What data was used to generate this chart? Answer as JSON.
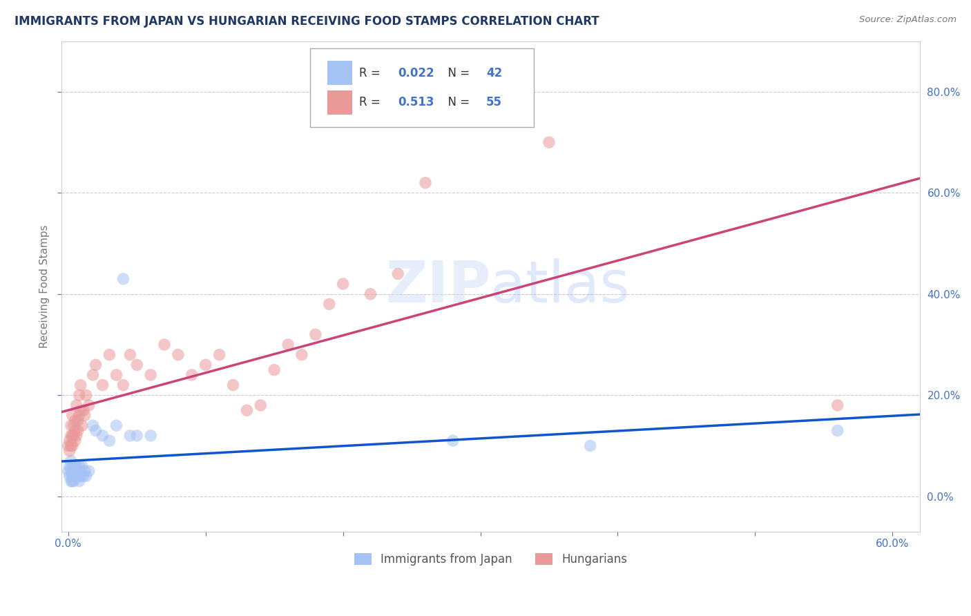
{
  "title": "IMMIGRANTS FROM JAPAN VS HUNGARIAN RECEIVING FOOD STAMPS CORRELATION CHART",
  "source": "Source: ZipAtlas.com",
  "ylabel": "Receiving Food Stamps",
  "japan_color": "#a4c2f4",
  "hungarian_color": "#ea9999",
  "japan_line_color": "#1155cc",
  "hungarian_line_color": "#cc4477",
  "title_color": "#1f3864",
  "axis_tick_color": "#4472c4",
  "watermark": "ZIPatlas",
  "xlim": [
    -0.005,
    0.62
  ],
  "ylim": [
    -0.07,
    0.9
  ],
  "ytick_positions": [
    0.0,
    0.2,
    0.4,
    0.6,
    0.8
  ],
  "xtick_positions": [
    0.0,
    0.1,
    0.2,
    0.3,
    0.4,
    0.5,
    0.6
  ],
  "xtick_labels_show": [
    "0.0%",
    "",
    "",
    "",
    "",
    "",
    "60.0%"
  ],
  "japan_x": [
    0.0,
    0.001,
    0.001,
    0.002,
    0.002,
    0.002,
    0.003,
    0.003,
    0.003,
    0.003,
    0.004,
    0.004,
    0.004,
    0.005,
    0.005,
    0.005,
    0.006,
    0.006,
    0.006,
    0.007,
    0.007,
    0.008,
    0.008,
    0.009,
    0.009,
    0.01,
    0.011,
    0.012,
    0.013,
    0.015,
    0.018,
    0.02,
    0.025,
    0.03,
    0.035,
    0.04,
    0.045,
    0.05,
    0.06,
    0.28,
    0.38,
    0.56
  ],
  "japan_y": [
    0.05,
    0.04,
    0.06,
    0.05,
    0.03,
    0.07,
    0.04,
    0.06,
    0.03,
    0.05,
    0.04,
    0.06,
    0.03,
    0.05,
    0.04,
    0.06,
    0.05,
    0.04,
    0.06,
    0.04,
    0.05,
    0.03,
    0.06,
    0.04,
    0.05,
    0.06,
    0.04,
    0.05,
    0.04,
    0.05,
    0.14,
    0.13,
    0.12,
    0.11,
    0.14,
    0.43,
    0.12,
    0.12,
    0.12,
    0.11,
    0.1,
    0.13
  ],
  "japan_sizes": [
    200,
    150,
    150,
    150,
    120,
    120,
    120,
    120,
    120,
    100,
    100,
    100,
    100,
    100,
    100,
    100,
    100,
    100,
    100,
    100,
    100,
    100,
    100,
    100,
    100,
    100,
    100,
    100,
    100,
    100,
    150,
    150,
    150,
    150,
    150,
    150,
    150,
    150,
    150,
    150,
    150,
    150
  ],
  "hungary_x": [
    0.0,
    0.001,
    0.001,
    0.002,
    0.002,
    0.002,
    0.003,
    0.003,
    0.003,
    0.004,
    0.004,
    0.005,
    0.005,
    0.005,
    0.006,
    0.006,
    0.007,
    0.007,
    0.008,
    0.008,
    0.009,
    0.009,
    0.01,
    0.011,
    0.012,
    0.013,
    0.015,
    0.018,
    0.02,
    0.025,
    0.03,
    0.035,
    0.04,
    0.045,
    0.05,
    0.06,
    0.07,
    0.08,
    0.09,
    0.1,
    0.11,
    0.12,
    0.13,
    0.14,
    0.15,
    0.16,
    0.17,
    0.18,
    0.19,
    0.2,
    0.22,
    0.24,
    0.26,
    0.35,
    0.56
  ],
  "hungary_y": [
    0.1,
    0.09,
    0.11,
    0.1,
    0.12,
    0.14,
    0.1,
    0.12,
    0.16,
    0.12,
    0.14,
    0.11,
    0.15,
    0.13,
    0.12,
    0.18,
    0.13,
    0.15,
    0.16,
    0.2,
    0.17,
    0.22,
    0.14,
    0.17,
    0.16,
    0.2,
    0.18,
    0.24,
    0.26,
    0.22,
    0.28,
    0.24,
    0.22,
    0.28,
    0.26,
    0.24,
    0.3,
    0.28,
    0.24,
    0.26,
    0.28,
    0.22,
    0.17,
    0.18,
    0.25,
    0.3,
    0.28,
    0.32,
    0.38,
    0.42,
    0.4,
    0.44,
    0.62,
    0.7,
    0.18
  ],
  "legend_r_japan": "0.022",
  "legend_n_japan": "42",
  "legend_r_hung": "0.513",
  "legend_n_hung": "55"
}
